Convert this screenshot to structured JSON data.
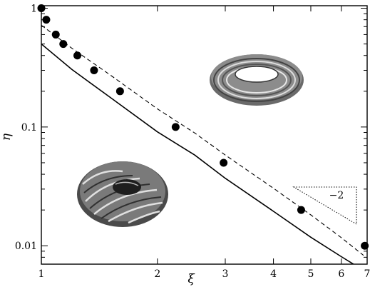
{
  "chart_data": {
    "type": "scatter",
    "title": "",
    "xlabel": "ξ",
    "ylabel": "η",
    "xscale": "log",
    "yscale": "log",
    "xlim": [
      1,
      7
    ],
    "ylim": [
      0.007,
      1.05
    ],
    "grid": false,
    "legend": "none",
    "x_tick_labels": [
      "1",
      "2",
      "3",
      "4",
      "5",
      "6",
      "7"
    ],
    "x_tick_values": [
      1,
      2,
      3,
      4,
      5,
      6,
      7
    ],
    "y_tick_labels": [
      "1",
      "0.1",
      "0.01"
    ],
    "y_tick_values": [
      1,
      0.1,
      0.01
    ],
    "series": [
      {
        "kind": "markers",
        "color": "#000000",
        "x": [
          1.0,
          1.03,
          1.09,
          1.14,
          1.24,
          1.37,
          1.6,
          2.23,
          2.97,
          4.72,
          6.9
        ],
        "y": [
          1.0,
          0.8,
          0.6,
          0.5,
          0.4,
          0.3,
          0.2,
          0.1,
          0.05,
          0.02,
          0.01
        ]
      },
      {
        "kind": "dashed-line",
        "color": "#000000",
        "x": [
          1.0,
          1.2,
          1.5,
          2.0,
          2.5,
          3.0,
          4.0,
          5.0,
          6.0,
          6.85
        ],
        "y": [
          0.72,
          0.46,
          0.278,
          0.142,
          0.089,
          0.058,
          0.0305,
          0.0182,
          0.0117,
          0.0083
        ]
      },
      {
        "kind": "solid-line",
        "color": "#000000",
        "x": [
          1.0,
          1.2,
          1.5,
          2.0,
          2.5,
          3.0,
          4.0,
          5.0,
          6.0,
          6.8
        ],
        "y": [
          0.5,
          0.305,
          0.18,
          0.091,
          0.058,
          0.037,
          0.0195,
          0.0118,
          0.0081,
          0.0063
        ]
      }
    ],
    "slope_annotation": {
      "label": "−2"
    },
    "insets": [
      {
        "icon": "smooth-torus-icon",
        "color": "#555555"
      },
      {
        "icon": "twisted-torus-icon",
        "color": "#444444"
      }
    ]
  }
}
